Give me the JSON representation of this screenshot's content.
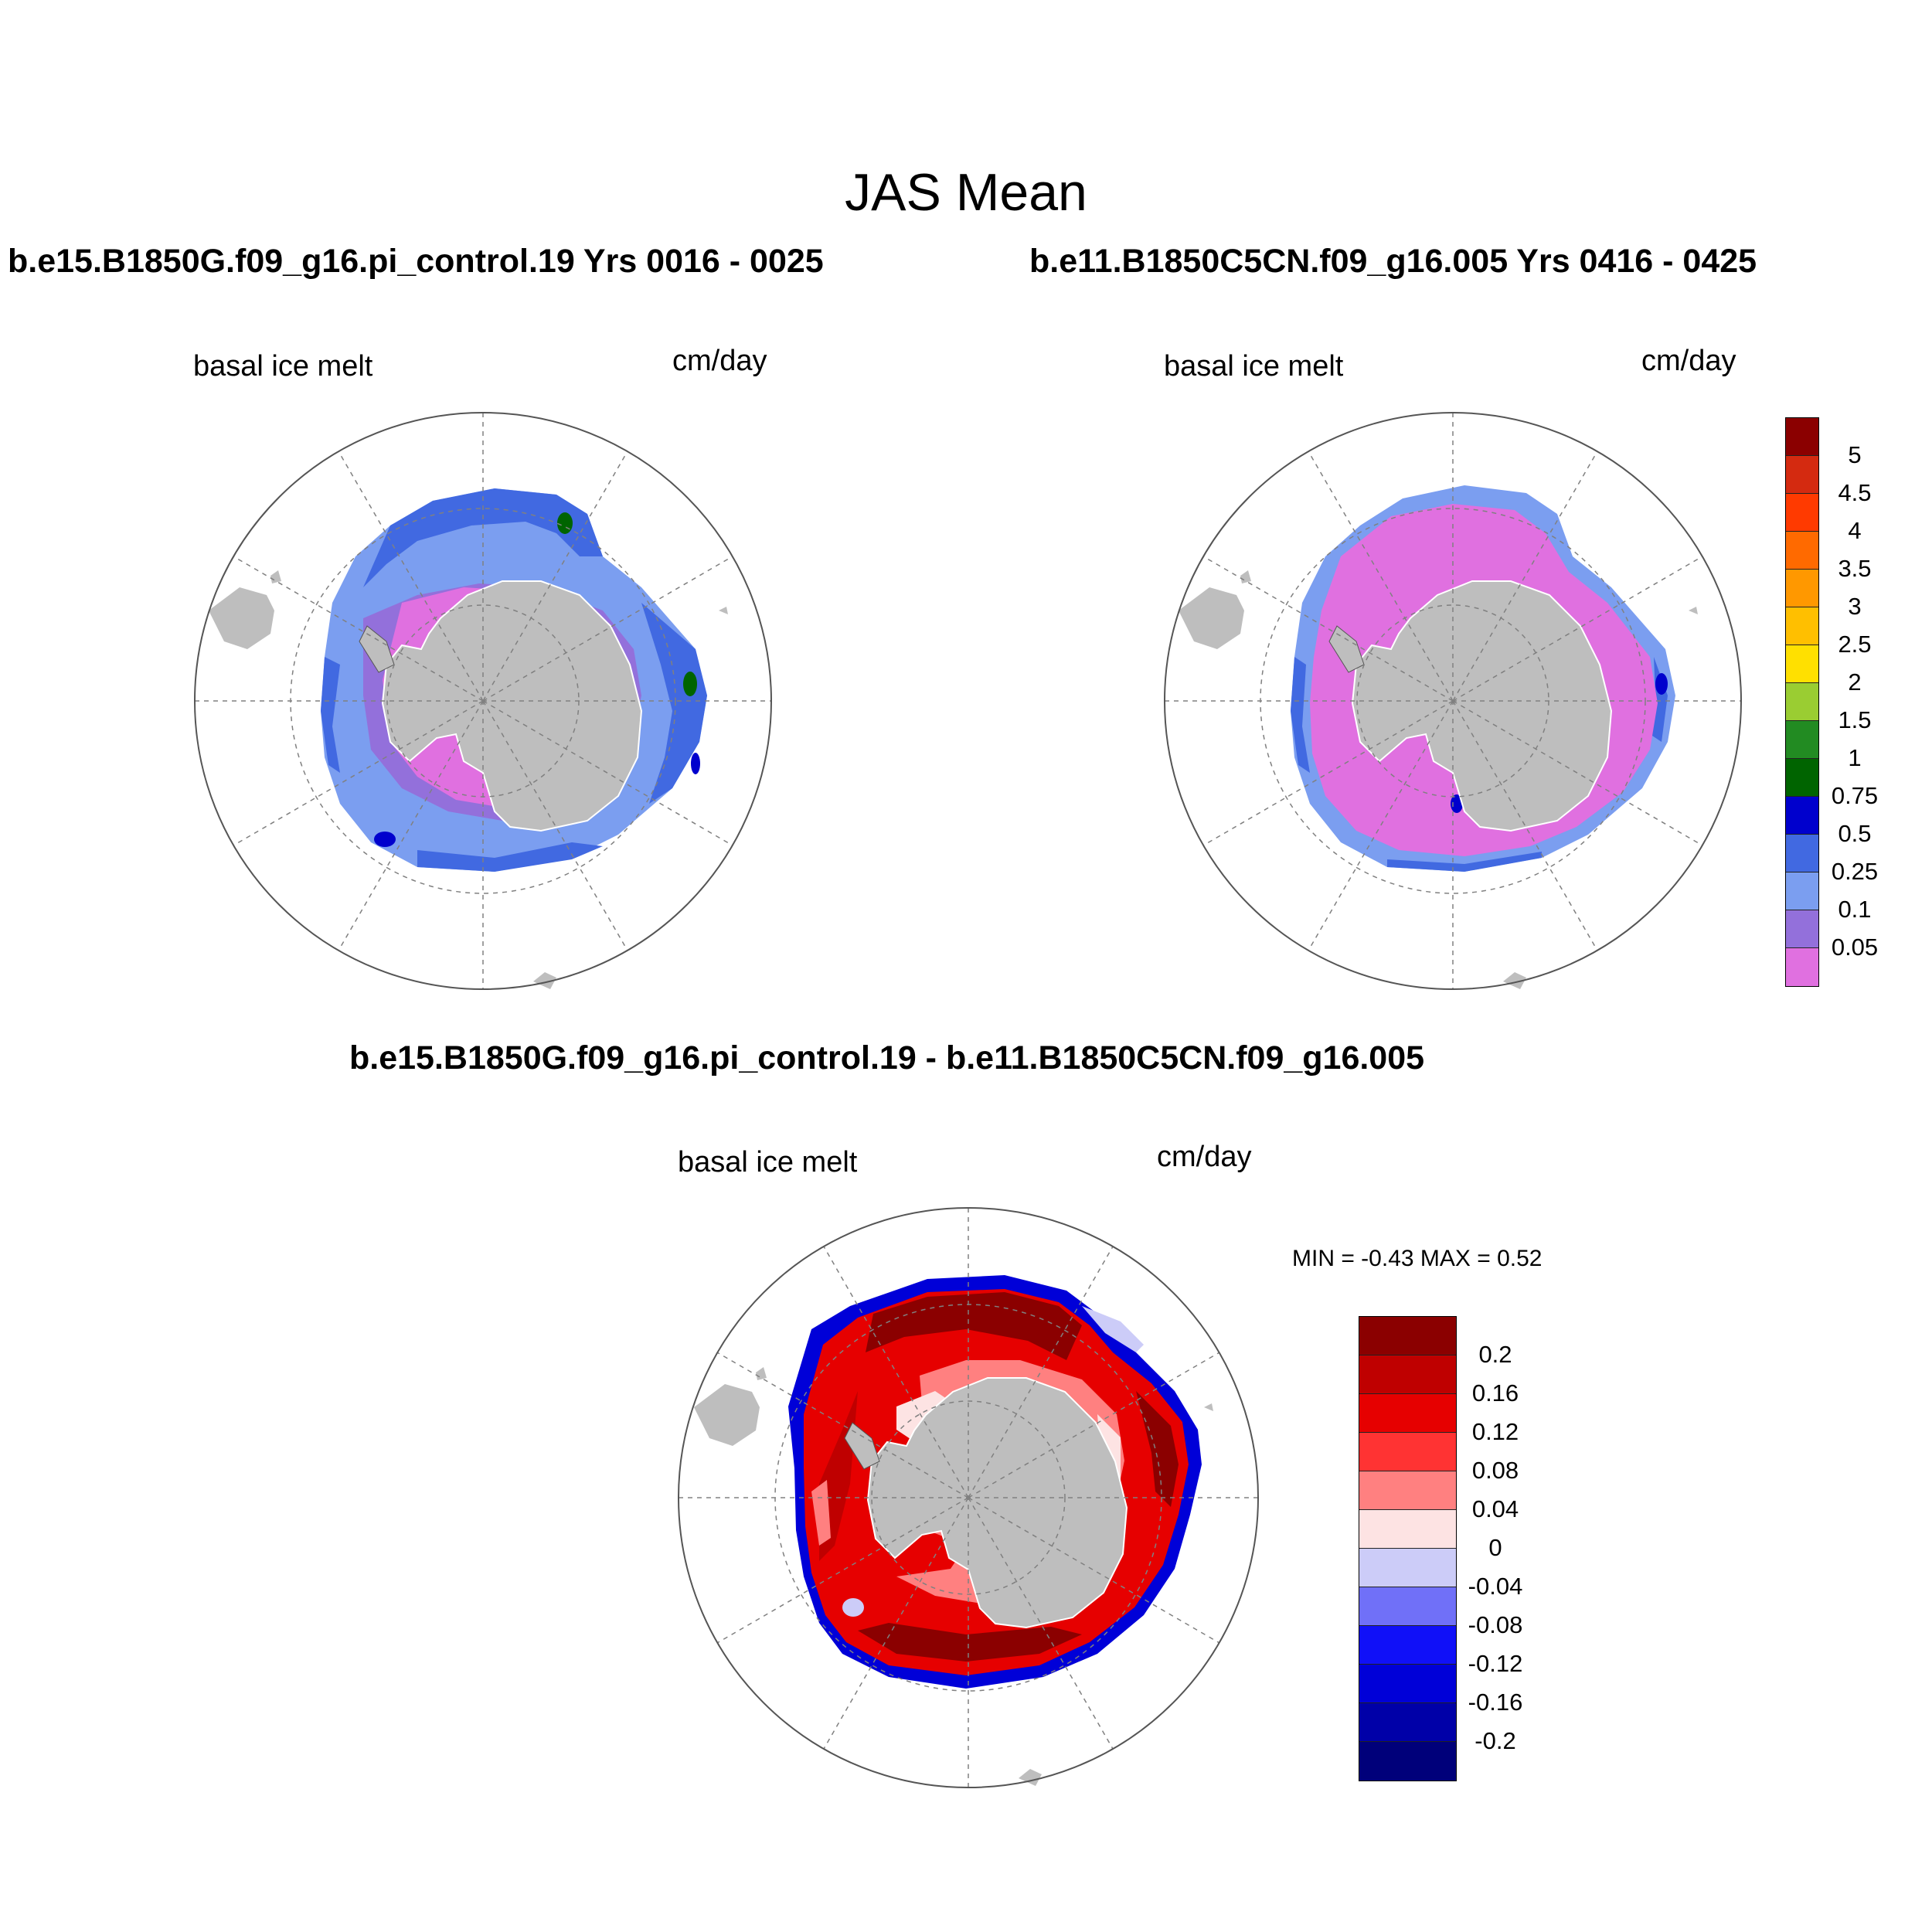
{
  "title": "JAS Mean",
  "panels": [
    {
      "id": "case1",
      "title": "b.e15.B1850G.f09_g16.pi_control.19  Yrs 0016 - 0025",
      "variable": "basal ice melt",
      "units": "cm/day"
    },
    {
      "id": "case2",
      "title": "b.e11.B1850C5CN.f09_g16.005  Yrs 0416 - 0425",
      "variable": "basal ice melt",
      "units": "cm/day"
    },
    {
      "id": "diff",
      "title": "b.e15.B1850G.f09_g16.pi_control.19 - b.e11.B1850C5CN.f09_g16.005",
      "variable": "basal ice melt",
      "units": "cm/day"
    }
  ],
  "diff_stats": {
    "text": "MIN =  -0.43 MAX =   0.52",
    "min": -0.43,
    "max": 0.52
  },
  "colorbar_main": {
    "labels": [
      "5",
      "4.5",
      "4",
      "3.5",
      "3",
      "2.5",
      "2",
      "1.5",
      "1",
      "0.75",
      "0.5",
      "0.25",
      "0.1",
      "0.05"
    ],
    "colors": [
      "#8B0000",
      "#D42A10",
      "#FF3A00",
      "#FF6A00",
      "#FF9800",
      "#FFBF00",
      "#FFE000",
      "#9ACD32",
      "#228B22",
      "#006400",
      "#0000CD",
      "#4169E1",
      "#7B9EF0",
      "#9370DB",
      "#E070E0"
    ]
  },
  "colorbar_diff": {
    "labels": [
      "0.2",
      "0.16",
      "0.12",
      "0.08",
      "0.04",
      "0",
      "-0.04",
      "-0.08",
      "-0.12",
      "-0.16",
      "-0.2"
    ],
    "colors": [
      "#8B0000",
      "#BF0000",
      "#E60000",
      "#FF3333",
      "#FF8080",
      "#FDE3E3",
      "#CCCCF8",
      "#7070F8",
      "#1010F8",
      "#0000D8",
      "#0000A8",
      "#00007A"
    ]
  },
  "colors": {
    "land": "#BEBEBE",
    "grid": "#808080"
  }
}
